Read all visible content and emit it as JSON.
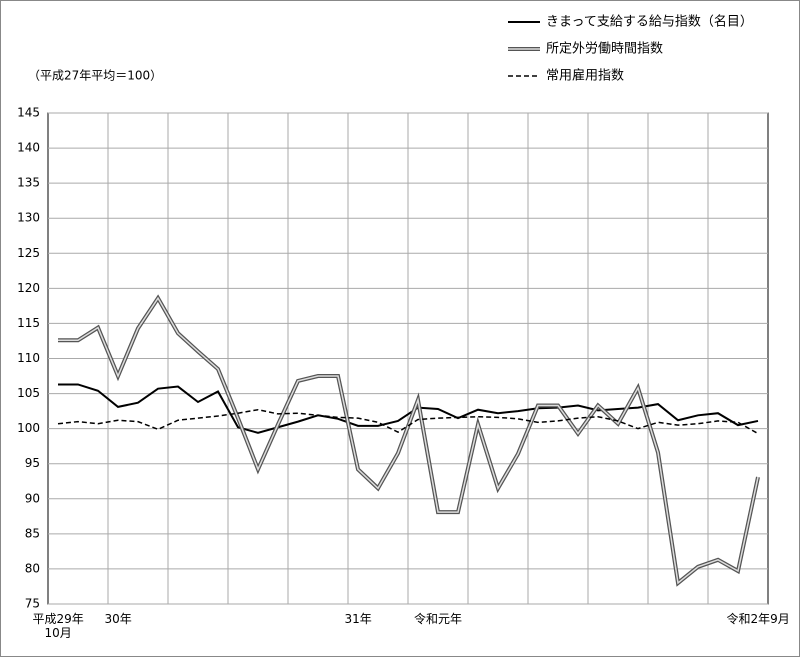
{
  "chart_data": {
    "type": "line",
    "note": "（平成27年平均＝100）",
    "categories": [
      "平成29年\n10月",
      null,
      null,
      "30年",
      null,
      null,
      null,
      null,
      null,
      null,
      null,
      null,
      null,
      null,
      null,
      "31年",
      null,
      null,
      null,
      "令和元年",
      null,
      null,
      null,
      null,
      null,
      null,
      null,
      null,
      null,
      null,
      null,
      null,
      null,
      null,
      null,
      "令和2年9月"
    ],
    "ylim": [
      75,
      145
    ],
    "yticks": [
      75,
      80,
      85,
      90,
      95,
      100,
      105,
      110,
      115,
      120,
      125,
      130,
      135,
      140,
      145
    ],
    "grid": true,
    "grid_every": 3,
    "series": [
      {
        "name": "きまって支給する給与指数（名目）",
        "color": "#000000",
        "line_style": "solid",
        "values": [
          106.3,
          106.3,
          105.4,
          103.1,
          103.7,
          105.7,
          106.0,
          103.8,
          105.3,
          100.2,
          99.4,
          100.2,
          101.0,
          101.9,
          101.4,
          100.4,
          100.4,
          101.1,
          103.0,
          102.8,
          101.5,
          102.7,
          102.2,
          102.5,
          102.9,
          103.0,
          103.3,
          102.6,
          102.8,
          103.0,
          103.5,
          101.2,
          101.9,
          102.2,
          100.5,
          101.1
        ]
      },
      {
        "name": "所定外労働時間指数",
        "color": "#555555",
        "line_style": "double",
        "values": [
          112.6,
          112.6,
          114.4,
          107.5,
          114.3,
          118.6,
          113.6,
          111.0,
          108.5,
          101.5,
          94.2,
          100.6,
          106.8,
          107.5,
          107.5,
          94.2,
          91.5,
          96.5,
          104.1,
          88.1,
          88.1,
          100.6,
          91.5,
          96.4,
          103.3,
          103.3,
          99.3,
          103.3,
          100.7,
          105.8,
          96.6,
          78.0,
          80.3,
          81.3,
          79.7,
          93.1
        ]
      },
      {
        "name": "常用雇用指数",
        "color": "#000000",
        "line_style": "dashed",
        "values": [
          100.7,
          101.0,
          100.7,
          101.2,
          101.0,
          99.9,
          101.2,
          101.5,
          101.8,
          102.2,
          102.7,
          102.1,
          102.2,
          101.9,
          101.6,
          101.5,
          100.9,
          99.5,
          101.3,
          101.5,
          101.6,
          101.7,
          101.6,
          101.4,
          100.9,
          101.1,
          101.5,
          101.7,
          101.1,
          100.0,
          100.9,
          100.5,
          100.7,
          101.1,
          100.9,
          99.3
        ]
      }
    ]
  }
}
